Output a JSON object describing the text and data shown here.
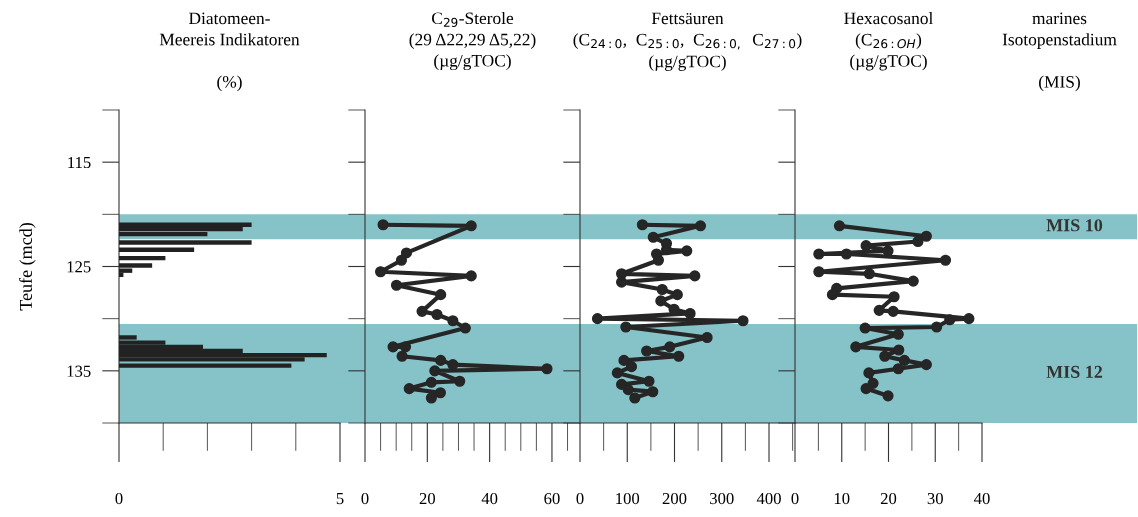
{
  "chart_data": [
    {
      "type": "bar",
      "orientation": "horizontal",
      "title": "Diatomeen-\nMeereis Indikatoren\n\n(%)",
      "ylabel": "Teufe (mcd)",
      "color": "#222222",
      "x": [
        121.0,
        121.4,
        121.9,
        122.7,
        123.4,
        124.2,
        124.9,
        125.4,
        125.8,
        131.8,
        132.3,
        132.7,
        133.1,
        133.5,
        133.9,
        134.5
      ],
      "values": [
        3.0,
        2.8,
        2.0,
        3.0,
        1.7,
        1.05,
        0.75,
        0.3,
        0.1,
        0.4,
        1.05,
        1.9,
        2.8,
        4.7,
        4.2,
        3.9
      ],
      "xlim": [
        0,
        5
      ],
      "xticks": [
        0,
        5
      ],
      "ylim": [
        140,
        110
      ],
      "yticks": [
        115,
        125,
        135
      ],
      "bands": [
        {
          "axis": "y",
          "from": 120.0,
          "to": 122.4,
          "label": "MIS 10",
          "color": "#85c3c8"
        },
        {
          "axis": "y",
          "from": 130.5,
          "to": 140,
          "label": "MIS 12",
          "color": "#85c3c8"
        }
      ]
    },
    {
      "type": "line",
      "title": "C$_{29}$-Sterole\n(29 Δ22,29 Δ5,22)\n(µg/gTOC)",
      "color": "#262626",
      "marker": "circle",
      "line_style": "solid",
      "tick_labels": "x",
      "x": [
        5.8,
        34.1,
        13.3,
        11.7,
        5.0,
        34.1,
        10.1,
        24.3,
        18.3,
        23.1,
        28.2,
        32.2,
        9.0,
        13.0,
        11.9,
        24.3,
        28.2,
        58.4,
        22.4,
        30.4,
        21.3,
        14.2,
        24.2,
        21.3
      ],
      "values": [
        121.0,
        121.1,
        123.7,
        124.4,
        125.5,
        125.9,
        126.8,
        127.7,
        129.3,
        129.6,
        130.2,
        130.9,
        132.7,
        132.7,
        133.6,
        134.0,
        134.4,
        134.8,
        135.0,
        136.0,
        136.1,
        136.7,
        137.1,
        137.6
      ],
      "xlim": [
        0,
        69
      ],
      "xticks": [
        0,
        20,
        40,
        60
      ],
      "ylim": [
        140,
        110
      ],
      "yticks": [
        115,
        125,
        135
      ]
    },
    {
      "type": "line",
      "title": "Fettsäuren\n(C$_{24:0}$,  C$_{25:0}$,  C$_{26:0,}$  C$_{27:0}$)\n(µg/gTOC)",
      "color": "#262626",
      "marker": "circle",
      "line_style": "solid",
      "tick_labels": "x",
      "x": [
        132,
        255,
        155,
        183,
        183,
        226,
        162,
        166,
        88,
        243,
        88,
        174,
        206,
        171,
        199,
        233,
        37,
        345,
        97,
        269,
        190,
        141,
        209,
        93,
        109,
        79,
        146,
        88,
        102,
        154,
        116
      ],
      "values": [
        121.0,
        121.1,
        122.2,
        122.8,
        123.4,
        123.5,
        123.8,
        124.4,
        125.7,
        125.9,
        126.5,
        127.2,
        127.7,
        128.3,
        129.1,
        129.5,
        130.0,
        130.2,
        130.8,
        131.8,
        132.7,
        133.1,
        133.6,
        134.0,
        134.6,
        135.2,
        136.0,
        136.3,
        136.8,
        137.0,
        137.6
      ],
      "xlim": [
        0,
        455
      ],
      "xticks": [
        0,
        100,
        200,
        300,
        400
      ],
      "ylim": [
        140,
        110
      ],
      "yticks": [
        115,
        125,
        135
      ]
    },
    {
      "type": "line",
      "title": "Hexacosanol\n(C$_{26:OH}$)\n(µg/gTOC)",
      "color": "#262626",
      "marker": "circle",
      "line_style": "solid",
      "tick_labels": "x",
      "x": [
        9.5,
        28.1,
        26.3,
        15.2,
        19.9,
        5.1,
        11.0,
        32.2,
        5.1,
        15.9,
        25.3,
        8.9,
        8.0,
        21.2,
        18.0,
        21.0,
        37.2,
        33.1,
        30.3,
        15.0,
        22.1,
        13.0,
        22.2,
        19.2,
        23.4,
        28.1,
        22.1,
        15.8,
        16.7,
        15.2,
        19.9
      ],
      "values": [
        121.1,
        122.1,
        122.6,
        123.0,
        123.5,
        123.8,
        123.8,
        124.4,
        125.5,
        125.7,
        126.4,
        127.1,
        127.7,
        127.9,
        129.2,
        129.3,
        130.0,
        130.1,
        130.8,
        130.9,
        131.5,
        132.7,
        133.0,
        133.6,
        134.0,
        134.4,
        134.8,
        135.2,
        136.2,
        136.7,
        137.4
      ],
      "xlim": [
        0,
        40
      ],
      "xticks": [
        0,
        10,
        20,
        30,
        40
      ],
      "ylim": [
        140,
        110
      ],
      "yticks": [
        115,
        125,
        135
      ]
    },
    {
      "type": "other",
      "title": "marines\nIsotopenstadium\n\n(MIS)"
    }
  ]
}
